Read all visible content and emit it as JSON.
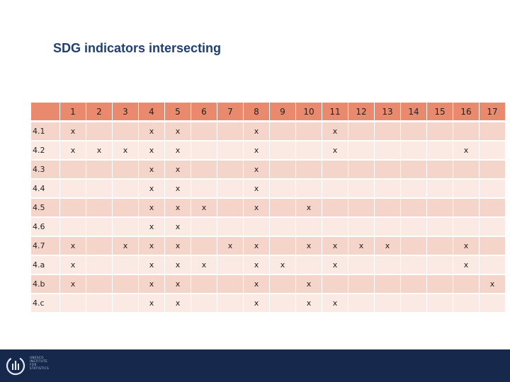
{
  "title": "SDG indicators intersecting",
  "columns": [
    "1",
    "2",
    "3",
    "4",
    "5",
    "6",
    "7",
    "8",
    "9",
    "10",
    "11",
    "12",
    "13",
    "14",
    "15",
    "16",
    "17"
  ],
  "rows": [
    {
      "label": "4.1",
      "cells": [
        "x",
        "",
        "",
        "x",
        "x",
        "",
        "",
        "x",
        "",
        "",
        "x",
        "",
        "",
        "",
        "",
        "",
        ""
      ]
    },
    {
      "label": "4.2",
      "cells": [
        "x",
        "x",
        "x",
        "x",
        "x",
        "",
        "",
        "x",
        "",
        "",
        "x",
        "",
        "",
        "",
        "",
        "x",
        ""
      ]
    },
    {
      "label": "4.3",
      "cells": [
        "",
        "",
        "",
        "x",
        "x",
        "",
        "",
        "x",
        "",
        "",
        "",
        "",
        "",
        "",
        "",
        "",
        ""
      ]
    },
    {
      "label": "4.4",
      "cells": [
        "",
        "",
        "",
        "x",
        "x",
        "",
        "",
        "x",
        "",
        "",
        "",
        "",
        "",
        "",
        "",
        "",
        ""
      ]
    },
    {
      "label": "4.5",
      "cells": [
        "",
        "",
        "",
        "x",
        "x",
        "x",
        "",
        "x",
        "",
        "x",
        "",
        "",
        "",
        "",
        "",
        "",
        ""
      ]
    },
    {
      "label": "4.6",
      "cells": [
        "",
        "",
        "",
        "x",
        "x",
        "",
        "",
        "",
        "",
        "",
        "",
        "",
        "",
        "",
        "",
        "",
        ""
      ]
    },
    {
      "label": "4.7",
      "cells": [
        "x",
        "",
        "x",
        "x",
        "x",
        "",
        "x",
        "x",
        "",
        "x",
        "x",
        "x",
        "x",
        "",
        "",
        "x",
        ""
      ]
    },
    {
      "label": "4.a",
      "cells": [
        "x",
        "",
        "",
        "x",
        "x",
        "x",
        "",
        "x",
        "x",
        "",
        "x",
        "",
        "",
        "",
        "",
        "x",
        ""
      ]
    },
    {
      "label": "4.b",
      "cells": [
        "x",
        "",
        "",
        "x",
        "x",
        "",
        "",
        "x",
        "",
        "x",
        "",
        "",
        "",
        "",
        "",
        "",
        "x"
      ]
    },
    {
      "label": "4.c",
      "cells": [
        "",
        "",
        "",
        "x",
        "x",
        "",
        "",
        "x",
        "",
        "x",
        "x",
        "",
        "",
        "",
        "",
        "",
        ""
      ]
    }
  ],
  "footer": {
    "logo_icon": "uis-logo-icon",
    "logo_text": [
      "UNESCO",
      "INSTITUTE",
      "FOR",
      "STATISTICS"
    ]
  },
  "colors": {
    "header": "#e9896e",
    "band": "#f5d4c9",
    "plain": "#fbe9e3",
    "footer": "#16294d",
    "title": "#1f3f73"
  }
}
